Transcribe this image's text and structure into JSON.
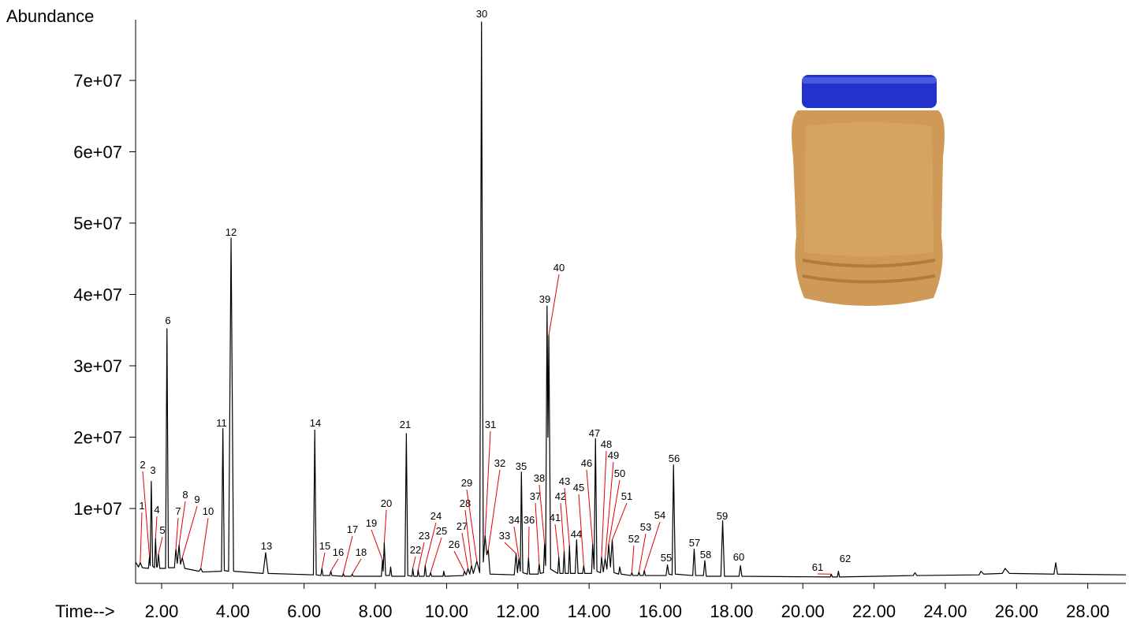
{
  "chart_data": {
    "type": "line",
    "y_label": "Abundance",
    "x_label": "Time-->",
    "xlim": [
      1.27,
      29.07
    ],
    "ylim": [
      0,
      78500000
    ],
    "xticks": [
      {
        "value": 2,
        "label": "2.00"
      },
      {
        "value": 4,
        "label": "4.00"
      },
      {
        "value": 6,
        "label": "6.00"
      },
      {
        "value": 8,
        "label": "8.00"
      },
      {
        "value": 10,
        "label": "10.00"
      },
      {
        "value": 12,
        "label": "12.00"
      },
      {
        "value": 14,
        "label": "14.00"
      },
      {
        "value": 16,
        "label": "16.00"
      },
      {
        "value": 18,
        "label": "18.00"
      },
      {
        "value": 20,
        "label": "20.00"
      },
      {
        "value": 22,
        "label": "22.00"
      },
      {
        "value": 24,
        "label": "24.00"
      },
      {
        "value": 26,
        "label": "26.00"
      },
      {
        "value": 28,
        "label": "28.00"
      }
    ],
    "yticks": [
      {
        "value": 10000000,
        "label": "1e+07"
      },
      {
        "value": 20000000,
        "label": "2e+07"
      },
      {
        "value": 30000000,
        "label": "3e+07"
      },
      {
        "value": 40000000,
        "label": "4e+07"
      },
      {
        "value": 50000000,
        "label": "5e+07"
      },
      {
        "value": 60000000,
        "label": "6e+07"
      },
      {
        "value": 70000000,
        "label": "7e+07"
      }
    ],
    "series": [
      {
        "color": "#000000",
        "x": [
          1.27,
          1.35,
          1.4,
          1.46,
          1.63,
          1.66,
          1.68,
          1.71,
          1.75,
          1.8,
          1.83,
          1.86,
          1.88,
          1.91,
          1.95,
          2.11,
          2.15,
          2.19,
          2.36,
          2.4,
          2.44,
          2.49,
          2.53,
          2.58,
          2.65,
          3.05,
          3.1,
          3.15,
          3.68,
          3.72,
          3.76,
          3.88,
          3.95,
          4.02,
          4.85,
          4.92,
          4.99,
          6.26,
          6.3,
          6.34,
          6.47,
          6.5,
          6.53,
          6.72,
          6.75,
          6.78,
          7.08,
          7.1,
          7.13,
          7.32,
          7.35,
          7.38,
          8.17,
          8.2,
          8.22,
          8.25,
          8.29,
          8.4,
          8.43,
          8.46,
          8.83,
          8.87,
          8.91,
          9.03,
          9.05,
          9.08,
          9.18,
          9.2,
          9.23,
          9.37,
          9.4,
          9.43,
          9.52,
          9.55,
          9.58,
          9.9,
          9.92,
          9.95,
          10.47,
          10.5,
          10.55,
          10.6,
          10.65,
          10.7,
          10.75,
          10.85,
          10.93,
          10.98,
          11.03,
          11.08,
          11.13,
          11.17,
          11.22,
          11.9,
          11.95,
          11.99,
          12.03,
          12.07,
          12.1,
          12.14,
          12.27,
          12.3,
          12.33,
          12.57,
          12.6,
          12.63,
          12.72,
          12.75,
          12.78,
          12.82,
          12.845,
          12.87,
          12.92,
          13.12,
          13.15,
          13.18,
          13.27,
          13.3,
          13.33,
          13.42,
          13.45,
          13.48,
          13.61,
          13.65,
          13.69,
          13.82,
          13.85,
          13.88,
          14.07,
          14.1,
          14.14,
          14.18,
          14.22,
          14.32,
          14.35,
          14.4,
          14.45,
          14.5,
          14.55,
          14.6,
          14.65,
          14.7,
          14.83,
          14.86,
          14.9,
          15.17,
          15.2,
          15.23,
          15.37,
          15.4,
          15.43,
          15.52,
          15.55,
          15.58,
          16.16,
          16.2,
          16.24,
          16.33,
          16.37,
          16.42,
          16.91,
          16.95,
          16.99,
          17.21,
          17.25,
          17.29,
          17.7,
          17.75,
          17.8,
          18.21,
          18.25,
          18.29,
          20.77,
          20.8,
          20.83,
          20.97,
          21.0,
          21.03,
          23.1,
          23.15,
          23.2,
          24.95,
          25.0,
          25.08,
          25.6,
          25.68,
          25.8,
          27.05,
          27.1,
          27.15,
          29.07
        ],
        "values": [
          2500000,
          1800000,
          2400000,
          1700000,
          1600000,
          3200000,
          2000000,
          13800000,
          1900000,
          1700000,
          5800000,
          1800000,
          1800000,
          3600000,
          1600000,
          1600000,
          35200000,
          1700000,
          1700000,
          4300000,
          2300000,
          4900000,
          2200000,
          3100000,
          1600000,
          1200000,
          1600000,
          1100000,
          1200000,
          21200000,
          1300000,
          1200000,
          47900000,
          1200000,
          900000,
          3800000,
          900000,
          700000,
          21000000,
          700000,
          600000,
          1600000,
          600000,
          600000,
          1200000,
          600000,
          500000,
          900000,
          500000,
          500000,
          800000,
          500000,
          500000,
          2800000,
          1200000,
          5200000,
          600000,
          600000,
          1800000,
          500000,
          500000,
          20500000,
          600000,
          500000,
          1600000,
          500000,
          500000,
          1400000,
          500000,
          500000,
          2000000,
          500000,
          500000,
          1000000,
          500000,
          500000,
          1200000,
          500000,
          600000,
          1200000,
          700000,
          1600000,
          800000,
          2000000,
          900000,
          2600000,
          1000000,
          78200000,
          2500000,
          6200000,
          3500000,
          4200000,
          800000,
          700000,
          3700000,
          1000000,
          3000000,
          1200000,
          15100000,
          1000000,
          800000,
          3100000,
          800000,
          800000,
          2200000,
          900000,
          1000000,
          5000000,
          2000000,
          38400000,
          20000000,
          34300000,
          1500000,
          900000,
          3200000,
          900000,
          900000,
          4000000,
          900000,
          900000,
          4800000,
          900000,
          900000,
          5600000,
          900000,
          900000,
          2000000,
          900000,
          900000,
          5000000,
          1500000,
          19800000,
          1200000,
          1000000,
          3200000,
          1100000,
          3000000,
          1500000,
          5000000,
          1800000,
          5600000,
          1000000,
          800000,
          1800000,
          800000,
          600000,
          1000000,
          600000,
          600000,
          1100000,
          600000,
          600000,
          1300000,
          600000,
          600000,
          2100000,
          800000,
          700000,
          16100000,
          800000,
          600000,
          4300000,
          600000,
          600000,
          2700000,
          500000,
          500000,
          8300000,
          500000,
          500000,
          2000000,
          500000,
          400000,
          800000,
          400000,
          400000,
          1200000,
          400000,
          600000,
          1000000,
          600000,
          700000,
          1200000,
          800000,
          900000,
          1600000,
          900000,
          800000,
          2400000,
          800000,
          700000
        ]
      }
    ],
    "peaks": [
      {
        "label": "1",
        "time": 1.4
      },
      {
        "label": "2",
        "time": 1.66
      },
      {
        "label": "3",
        "time": 1.71
      },
      {
        "label": "4",
        "time": 1.83
      },
      {
        "label": "5",
        "time": 1.91
      },
      {
        "label": "6",
        "time": 2.15
      },
      {
        "label": "7",
        "time": 2.4
      },
      {
        "label": "8",
        "time": 2.49
      },
      {
        "label": "9",
        "time": 2.58
      },
      {
        "label": "10",
        "time": 3.1
      },
      {
        "label": "11",
        "time": 3.72
      },
      {
        "label": "12",
        "time": 3.95
      },
      {
        "label": "13",
        "time": 4.92
      },
      {
        "label": "14",
        "time": 6.3
      },
      {
        "label": "15",
        "time": 6.5
      },
      {
        "label": "16",
        "time": 6.75
      },
      {
        "label": "17",
        "time": 7.1
      },
      {
        "label": "18",
        "time": 7.35
      },
      {
        "label": "19",
        "time": 8.2
      },
      {
        "label": "20",
        "time": 8.25
      },
      {
        "label": "21",
        "time": 8.87
      },
      {
        "label": "22",
        "time": 9.05
      },
      {
        "label": "23",
        "time": 9.2
      },
      {
        "label": "24",
        "time": 9.4
      },
      {
        "label": "25",
        "time": 9.55
      },
      {
        "label": "26",
        "time": 10.5
      },
      {
        "label": "27",
        "time": 10.6
      },
      {
        "label": "28",
        "time": 10.7
      },
      {
        "label": "29",
        "time": 10.85
      },
      {
        "label": "30",
        "time": 10.98
      },
      {
        "label": "31",
        "time": 11.08
      },
      {
        "label": "32",
        "time": 11.17
      },
      {
        "label": "33",
        "time": 11.95
      },
      {
        "label": "34",
        "time": 12.03
      },
      {
        "label": "35",
        "time": 12.1
      },
      {
        "label": "36",
        "time": 12.3
      },
      {
        "label": "37",
        "time": 12.6
      },
      {
        "label": "38",
        "time": 12.75
      },
      {
        "label": "39",
        "time": 12.82
      },
      {
        "label": "40",
        "time": 12.87
      },
      {
        "label": "41",
        "time": 13.15
      },
      {
        "label": "42",
        "time": 13.3
      },
      {
        "label": "43",
        "time": 13.45
      },
      {
        "label": "44",
        "time": 13.65
      },
      {
        "label": "45",
        "time": 13.85
      },
      {
        "label": "46",
        "time": 14.1
      },
      {
        "label": "47",
        "time": 14.18
      },
      {
        "label": "48",
        "time": 14.35
      },
      {
        "label": "49",
        "time": 14.45
      },
      {
        "label": "50",
        "time": 14.55
      },
      {
        "label": "51",
        "time": 14.65
      },
      {
        "label": "52",
        "time": 15.2
      },
      {
        "label": "53",
        "time": 15.4
      },
      {
        "label": "54",
        "time": 15.55
      },
      {
        "label": "55",
        "time": 16.2
      },
      {
        "label": "56",
        "time": 16.37
      },
      {
        "label": "57",
        "time": 16.95
      },
      {
        "label": "58",
        "time": 17.25
      },
      {
        "label": "59",
        "time": 17.75
      },
      {
        "label": "60",
        "time": 18.25
      },
      {
        "label": "61",
        "time": 20.8
      },
      {
        "label": "62",
        "time": 21.0
      }
    ]
  }
}
